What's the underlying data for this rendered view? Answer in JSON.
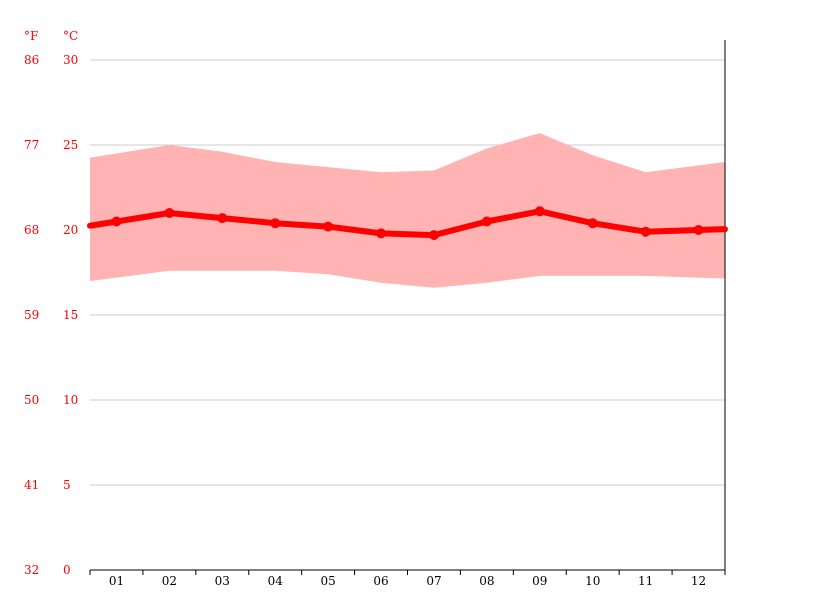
{
  "chart_data": {
    "type": "area",
    "units": {
      "fahrenheit_label": "°F",
      "celsius_label": "°C"
    },
    "categories": [
      "01",
      "02",
      "03",
      "04",
      "05",
      "06",
      "07",
      "08",
      "09",
      "10",
      "11",
      "12"
    ],
    "series": [
      {
        "values": [
          20.5,
          21.0,
          20.7,
          20.4,
          20.2,
          19.8,
          19.7,
          20.5,
          21.1,
          20.4,
          19.9,
          20.0
        ]
      },
      {
        "values": [
          24.5,
          25.0,
          24.6,
          24.0,
          23.7,
          23.4,
          23.5,
          24.8,
          25.7,
          24.4,
          23.4,
          23.8
        ]
      },
      {
        "values": [
          17.2,
          17.6,
          17.6,
          17.6,
          17.4,
          16.9,
          16.6,
          16.9,
          17.3,
          17.3,
          17.3,
          17.2
        ]
      }
    ],
    "y_celsius_ticks": [
      "0",
      "5",
      "10",
      "15",
      "20",
      "25",
      "30"
    ],
    "y_fahrenheit_ticks": [
      "32",
      "41",
      "50",
      "59",
      "68",
      "77",
      "86"
    ],
    "ylim": [
      0,
      30
    ],
    "grid": true,
    "colors": {
      "line": "#ff0000",
      "band": "#ffb3b3",
      "grid": "#cccccc",
      "axis": "#000000",
      "tick_labels": "#ff0000"
    }
  }
}
